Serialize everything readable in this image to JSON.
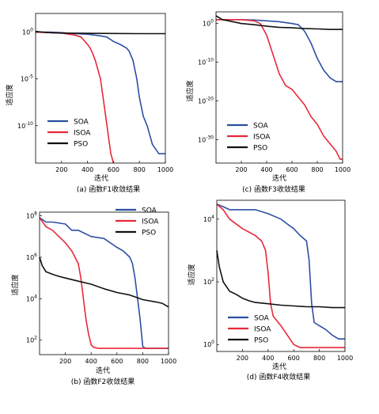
{
  "colors": {
    "SOA": "#2c4fa3",
    "ISOA": "#e8283a",
    "PSO": "#111111"
  },
  "chart_data": [
    {
      "type": "line",
      "caption": "(a) 函数F1收敛结果",
      "xlabel": "迭代",
      "ylabel": "适应度",
      "xlim": [
        0,
        1000
      ],
      "y_scale": "log",
      "ylim": [
        1e-14,
        100.0
      ],
      "xticks": [
        "200",
        "400",
        "600",
        "800",
        "1000"
      ],
      "yticks": [
        {
          "exp": 0,
          "label": "10"
        },
        {
          "exp": -5,
          "label": "10"
        },
        {
          "exp": -10,
          "label": "10"
        }
      ],
      "ytick_exps": [
        "0",
        "-5",
        "-10"
      ],
      "legend": "lower-left",
      "series": [
        {
          "name": "SOA",
          "x": [
            0,
            100,
            200,
            300,
            400,
            450,
            500,
            550,
            600,
            650,
            700,
            720,
            750,
            780,
            800,
            830,
            860,
            900,
            950,
            970,
            1000
          ],
          "y": [
            1.0,
            1.0,
            0.9,
            0.7,
            0.6,
            0.5,
            0.4,
            0.3,
            0.1,
            0.05,
            0.02,
            0.01,
            0.001,
            1e-05,
            1e-07,
            1e-09,
            1e-10,
            1e-12,
            1e-13,
            1e-13,
            1e-13
          ]
        },
        {
          "name": "ISOA",
          "x": [
            0,
            100,
            200,
            300,
            350,
            380,
            400,
            420,
            440,
            460,
            480,
            500,
            520,
            540,
            560,
            580,
            600
          ],
          "y": [
            1.0,
            0.9,
            0.8,
            0.5,
            0.3,
            0.1,
            0.05,
            0.02,
            0.005,
            0.001,
            0.0001,
            1e-05,
            1e-07,
            1e-09,
            1e-11,
            1e-13,
            1e-14
          ]
        },
        {
          "name": "PSO",
          "x": [
            0,
            50,
            100,
            200,
            400,
            600,
            800,
            1000
          ],
          "y": [
            1.2,
            1.0,
            0.9,
            0.8,
            0.75,
            0.72,
            0.7,
            0.7
          ]
        }
      ]
    },
    {
      "type": "line",
      "caption": "(c) 函数F3收敛结果",
      "xlabel": "迭代",
      "ylabel": "适应度",
      "xlim": [
        0,
        1000
      ],
      "y_scale": "log",
      "ylim": [
        1e-36,
        1000.0
      ],
      "xticks": [
        "200",
        "400",
        "600",
        "800",
        "1000"
      ],
      "yticks": [
        {
          "exp": 0,
          "label": "10"
        },
        {
          "exp": -10,
          "label": "10"
        },
        {
          "exp": -20,
          "label": "10"
        },
        {
          "exp": -30,
          "label": "10"
        }
      ],
      "ytick_exps": [
        "0",
        "-10",
        "-20",
        "-30"
      ],
      "legend": "lower-left",
      "series": [
        {
          "name": "SOA",
          "x": [
            0,
            100,
            200,
            300,
            400,
            500,
            600,
            650,
            700,
            750,
            800,
            850,
            900,
            950,
            1000
          ],
          "y": [
            10,
            10,
            10,
            8,
            5,
            3,
            1,
            0.5,
            0.01,
            1e-05,
            1e-09,
            1e-12,
            1e-14,
            1e-15,
            1e-15
          ]
        },
        {
          "name": "ISOA",
          "x": [
            0,
            100,
            200,
            300,
            350,
            400,
            450,
            500,
            550,
            600,
            650,
            700,
            750,
            800,
            850,
            900,
            950,
            980,
            1000
          ],
          "y": [
            10,
            10,
            10,
            5,
            1,
            0.001,
            1e-08,
            1e-13,
            1e-16,
            1e-17,
            1e-19,
            1e-21,
            1e-24,
            1e-26,
            1e-29,
            1e-31,
            1e-33,
            1e-35,
            1e-35
          ]
        },
        {
          "name": "PSO",
          "x": [
            0,
            50,
            100,
            200,
            300,
            400,
            500,
            600,
            700,
            800,
            900,
            1000
          ],
          "y": [
            100.0,
            10,
            5,
            1,
            0.5,
            0.2,
            0.1,
            0.08,
            0.05,
            0.04,
            0.03,
            0.03
          ]
        }
      ]
    },
    {
      "type": "line",
      "caption": "(b) 函数F2收敛结果",
      "xlabel": "迭代",
      "ylabel": "适应度",
      "xlim": [
        0,
        1000
      ],
      "y_scale": "log",
      "ylim": [
        20,
        150000000.0
      ],
      "xticks": [
        "200",
        "400",
        "600",
        "800",
        "1000"
      ],
      "yticks": [
        {
          "exp": 8,
          "label": "10"
        },
        {
          "exp": 6,
          "label": "10"
        },
        {
          "exp": 4,
          "label": "10"
        },
        {
          "exp": 2,
          "label": "10"
        }
      ],
      "ytick_exps": [
        "8",
        "6",
        "4",
        "2"
      ],
      "legend": "top-right",
      "series": [
        {
          "name": "SOA",
          "x": [
            0,
            50,
            100,
            200,
            250,
            300,
            400,
            500,
            600,
            650,
            700,
            720,
            740,
            760,
            780,
            800,
            820,
            1000
          ],
          "y": [
            80000000.0,
            50000000.0,
            50000000.0,
            40000000.0,
            20000000.0,
            20000000.0,
            10000000.0,
            8000000.0,
            3000000.0,
            2000000.0,
            1000000.0,
            500000.0,
            100000.0,
            10000.0,
            1000.0,
            50,
            40,
            40
          ]
        },
        {
          "name": "ISOA",
          "x": [
            0,
            50,
            100,
            150,
            200,
            250,
            300,
            320,
            340,
            360,
            380,
            400,
            420,
            440,
            460,
            1000
          ],
          "y": [
            80000000.0,
            30000000.0,
            20000000.0,
            10000000.0,
            5000000.0,
            2000000.0,
            500000.0,
            100000.0,
            10000.0,
            1000.0,
            200,
            60,
            45,
            42,
            40,
            40
          ]
        },
        {
          "name": "PSO",
          "x": [
            0,
            20,
            50,
            100,
            150,
            200,
            300,
            400,
            500,
            600,
            700,
            800,
            900,
            950,
            1000
          ],
          "y": [
            1000000.0,
            400000.0,
            200000.0,
            150000.0,
            120000.0,
            100000.0,
            70000.0,
            50000.0,
            30000.0,
            20000.0,
            15000.0,
            9000.0,
            7000.0,
            6000.0,
            4000.0
          ]
        }
      ]
    },
    {
      "type": "line",
      "caption": "(d) 函数F4收敛结果",
      "xlabel": "迭代",
      "ylabel": "适应度",
      "xlim": [
        0,
        1000
      ],
      "y_scale": "log",
      "ylim": [
        0.6,
        40000.0
      ],
      "xticks": [
        "200",
        "400",
        "600",
        "800",
        "1000"
      ],
      "yticks": [
        {
          "exp": 4,
          "label": "10"
        },
        {
          "exp": 2,
          "label": "10"
        },
        {
          "exp": 0,
          "label": "10"
        }
      ],
      "ytick_exps": [
        "4",
        "2",
        "0"
      ],
      "legend": "lower-left",
      "series": [
        {
          "name": "SOA",
          "x": [
            0,
            50,
            100,
            200,
            300,
            400,
            500,
            550,
            600,
            650,
            700,
            720,
            740,
            760,
            800,
            850,
            900,
            950,
            1000
          ],
          "y": [
            30000.0,
            25000.0,
            20000.0,
            20000.0,
            20000.0,
            15000.0,
            10000.0,
            7000.0,
            5000.0,
            3000.0,
            2000.0,
            500,
            20,
            5,
            4,
            3,
            2,
            1.5,
            1.5
          ]
        },
        {
          "name": "ISOA",
          "x": [
            0,
            50,
            100,
            200,
            300,
            350,
            380,
            400,
            420,
            440,
            500,
            550,
            600,
            650,
            1000
          ],
          "y": [
            30000.0,
            20000.0,
            10000.0,
            5000.0,
            3000.0,
            2000.0,
            1000.0,
            200,
            20,
            8,
            4,
            2,
            1,
            0.8,
            0.8
          ]
        },
        {
          "name": "PSO",
          "x": [
            0,
            20,
            50,
            100,
            150,
            200,
            250,
            300,
            400,
            500,
            600,
            700,
            800,
            900,
            1000
          ],
          "y": [
            1000.0,
            300,
            100,
            50,
            40,
            30,
            25,
            22,
            20,
            18,
            17,
            16,
            16,
            15,
            15
          ]
        }
      ]
    }
  ]
}
